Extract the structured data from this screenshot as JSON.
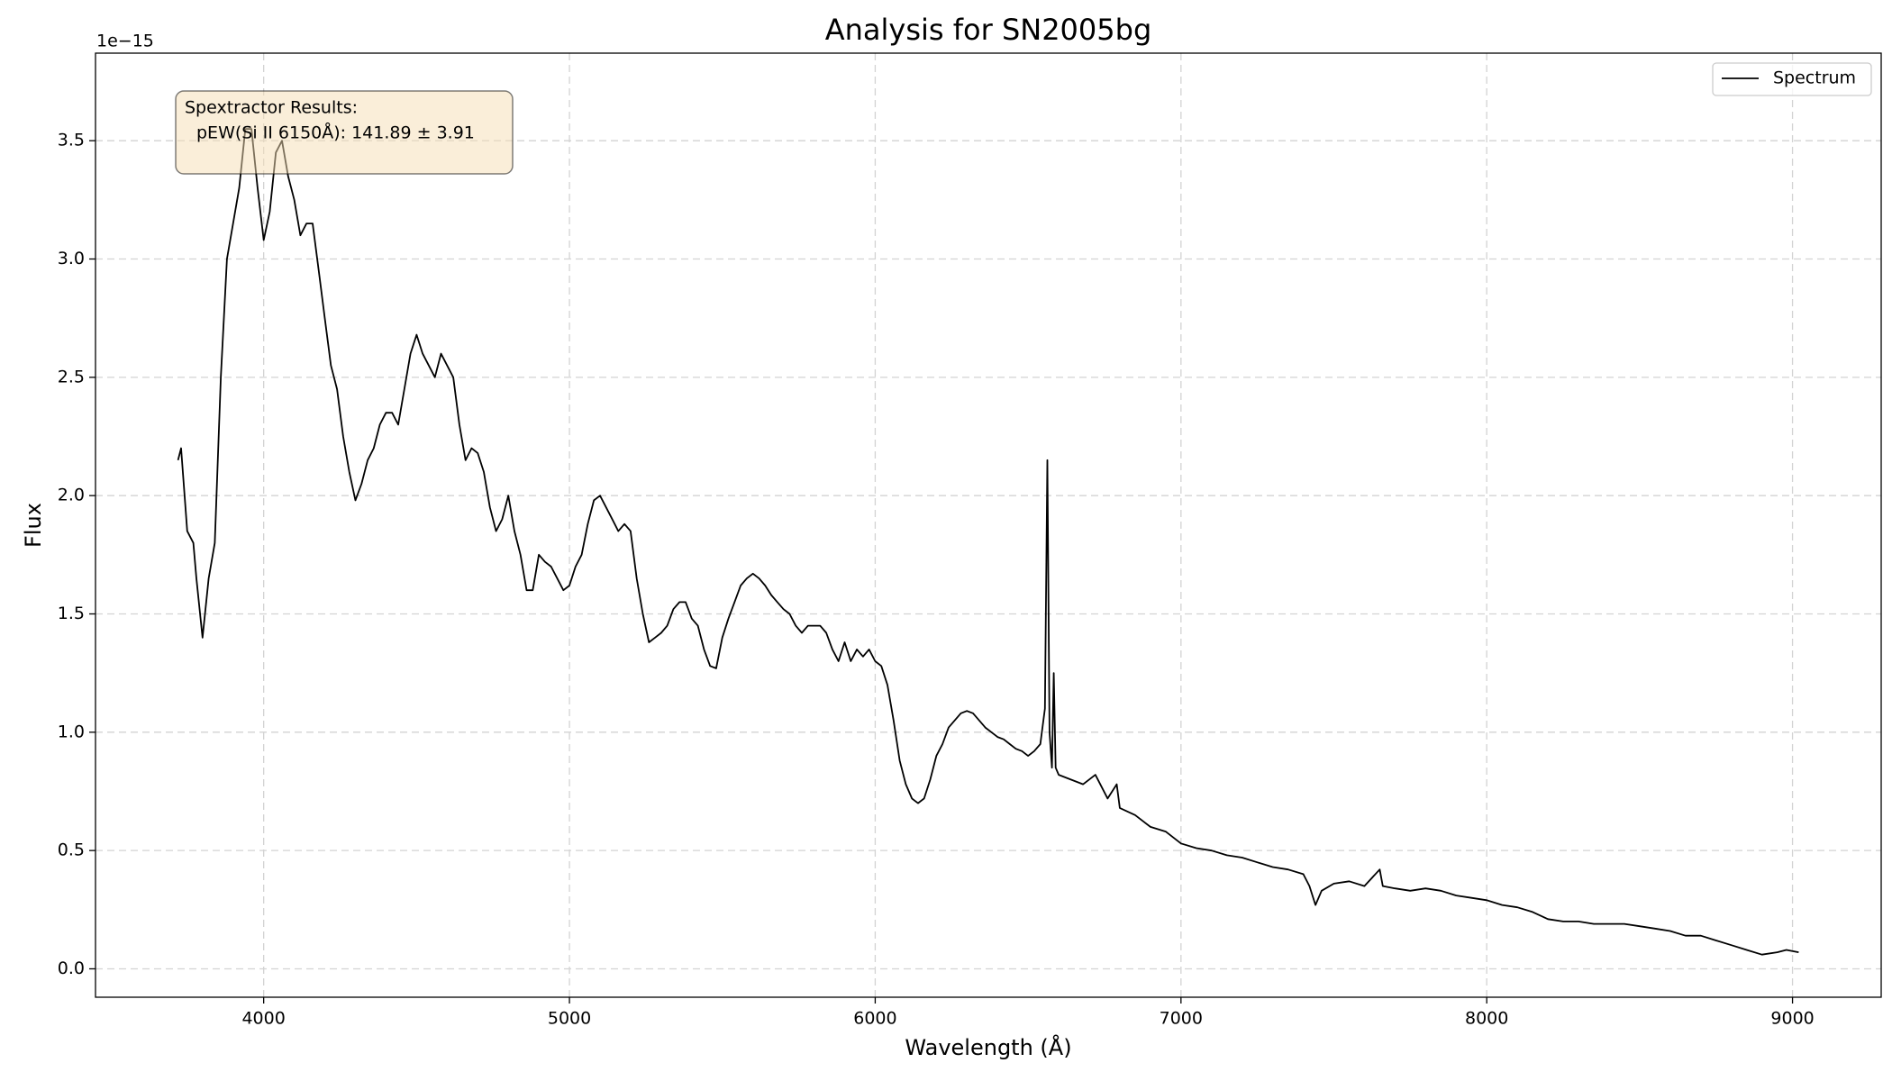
{
  "chart_data": {
    "type": "line",
    "title": "Analysis for SN2005bg",
    "x_label": "Wavelength (Å)",
    "y_label": "Flux",
    "y_offset_label": "1e−15",
    "annotation": {
      "lines": [
        "Spextractor Results:",
        "pEW(Si II 6150Å): 141.89 ± 3.91"
      ],
      "background": "#f5deb3"
    },
    "legend": "upper right",
    "grid": true,
    "xlim": [
      3450,
      9290
    ],
    "xticks": [
      4000,
      5000,
      6000,
      7000,
      8000,
      9000
    ],
    "ylim": [
      -0.12,
      3.87
    ],
    "yticks": [
      {
        "value": 0,
        "label": "0.0"
      },
      0.5,
      {
        "value": 1,
        "label": "1.0"
      },
      1.5,
      {
        "value": 2,
        "label": "2.0"
      },
      2.5,
      {
        "value": 3,
        "label": "3.0"
      },
      3.5
    ],
    "x": [
      3720,
      3730,
      3750,
      3770,
      3780,
      3800,
      3820,
      3840,
      3860,
      3880,
      3900,
      3920,
      3940,
      3960,
      3980,
      4000,
      4020,
      4040,
      4060,
      4080,
      4100,
      4120,
      4140,
      4160,
      4180,
      4200,
      4220,
      4240,
      4260,
      4280,
      4300,
      4320,
      4340,
      4360,
      4380,
      4400,
      4420,
      4440,
      4460,
      4480,
      4500,
      4520,
      4540,
      4560,
      4580,
      4600,
      4620,
      4640,
      4660,
      4680,
      4700,
      4720,
      4740,
      4760,
      4780,
      4800,
      4820,
      4840,
      4860,
      4880,
      4900,
      4920,
      4940,
      4960,
      4980,
      5000,
      5020,
      5040,
      5060,
      5080,
      5100,
      5120,
      5140,
      5160,
      5180,
      5200,
      5220,
      5240,
      5260,
      5280,
      5300,
      5320,
      5340,
      5360,
      5380,
      5400,
      5420,
      5440,
      5460,
      5480,
      5500,
      5520,
      5540,
      5560,
      5580,
      5600,
      5620,
      5640,
      5660,
      5680,
      5700,
      5720,
      5740,
      5760,
      5780,
      5800,
      5820,
      5840,
      5860,
      5880,
      5900,
      5920,
      5940,
      5960,
      5980,
      6000,
      6020,
      6040,
      6060,
      6080,
      6100,
      6120,
      6140,
      6160,
      6180,
      6200,
      6220,
      6240,
      6260,
      6280,
      6300,
      6320,
      6340,
      6360,
      6380,
      6400,
      6420,
      6440,
      6460,
      6480,
      6500,
      6520,
      6540,
      6555,
      6563,
      6570,
      6578,
      6584,
      6590,
      6600,
      6640,
      6680,
      6720,
      6760,
      6790,
      6800,
      6850,
      6900,
      6950,
      7000,
      7050,
      7100,
      7150,
      7200,
      7250,
      7300,
      7350,
      7400,
      7420,
      7440,
      7460,
      7500,
      7550,
      7600,
      7650,
      7660,
      7700,
      7750,
      7800,
      7850,
      7900,
      7950,
      8000,
      8050,
      8100,
      8150,
      8200,
      8250,
      8300,
      8350,
      8400,
      8450,
      8500,
      8550,
      8600,
      8650,
      8700,
      8750,
      8800,
      8850,
      8900,
      8950,
      8980,
      9020
    ],
    "series": [
      {
        "name": "Spectrum",
        "color": "#000000",
        "values": [
          2.15,
          2.2,
          1.85,
          1.8,
          1.65,
          1.4,
          1.65,
          1.8,
          2.5,
          3.0,
          3.15,
          3.3,
          3.55,
          3.55,
          3.3,
          3.08,
          3.2,
          3.45,
          3.5,
          3.35,
          3.25,
          3.1,
          3.15,
          3.15,
          2.95,
          2.75,
          2.55,
          2.45,
          2.25,
          2.1,
          1.98,
          2.05,
          2.15,
          2.2,
          2.3,
          2.35,
          2.35,
          2.3,
          2.45,
          2.6,
          2.68,
          2.6,
          2.55,
          2.5,
          2.6,
          2.55,
          2.5,
          2.3,
          2.15,
          2.2,
          2.18,
          2.1,
          1.95,
          1.85,
          1.9,
          2.0,
          1.85,
          1.75,
          1.6,
          1.6,
          1.75,
          1.72,
          1.7,
          1.65,
          1.6,
          1.62,
          1.7,
          1.75,
          1.88,
          1.98,
          2.0,
          1.95,
          1.9,
          1.85,
          1.88,
          1.85,
          1.65,
          1.5,
          1.38,
          1.4,
          1.42,
          1.45,
          1.52,
          1.55,
          1.55,
          1.48,
          1.45,
          1.35,
          1.28,
          1.27,
          1.4,
          1.48,
          1.55,
          1.62,
          1.65,
          1.67,
          1.65,
          1.62,
          1.58,
          1.55,
          1.52,
          1.5,
          1.45,
          1.42,
          1.45,
          1.45,
          1.45,
          1.42,
          1.35,
          1.3,
          1.38,
          1.3,
          1.35,
          1.32,
          1.35,
          1.3,
          1.28,
          1.2,
          1.05,
          0.88,
          0.78,
          0.72,
          0.7,
          0.72,
          0.8,
          0.9,
          0.95,
          1.02,
          1.05,
          1.08,
          1.09,
          1.08,
          1.05,
          1.02,
          1.0,
          0.98,
          0.97,
          0.95,
          0.93,
          0.92,
          0.9,
          0.92,
          0.95,
          1.1,
          2.15,
          1.0,
          0.85,
          1.25,
          0.85,
          0.82,
          0.8,
          0.78,
          0.82,
          0.72,
          0.78,
          0.68,
          0.65,
          0.6,
          0.58,
          0.53,
          0.51,
          0.5,
          0.48,
          0.47,
          0.45,
          0.43,
          0.42,
          0.4,
          0.35,
          0.27,
          0.33,
          0.36,
          0.37,
          0.35,
          0.42,
          0.35,
          0.34,
          0.33,
          0.34,
          0.33,
          0.31,
          0.3,
          0.29,
          0.27,
          0.26,
          0.24,
          0.21,
          0.2,
          0.2,
          0.19,
          0.19,
          0.19,
          0.18,
          0.17,
          0.16,
          0.14,
          0.14,
          0.12,
          0.1,
          0.08,
          0.06,
          0.07,
          0.08,
          0.07
        ]
      }
    ]
  }
}
